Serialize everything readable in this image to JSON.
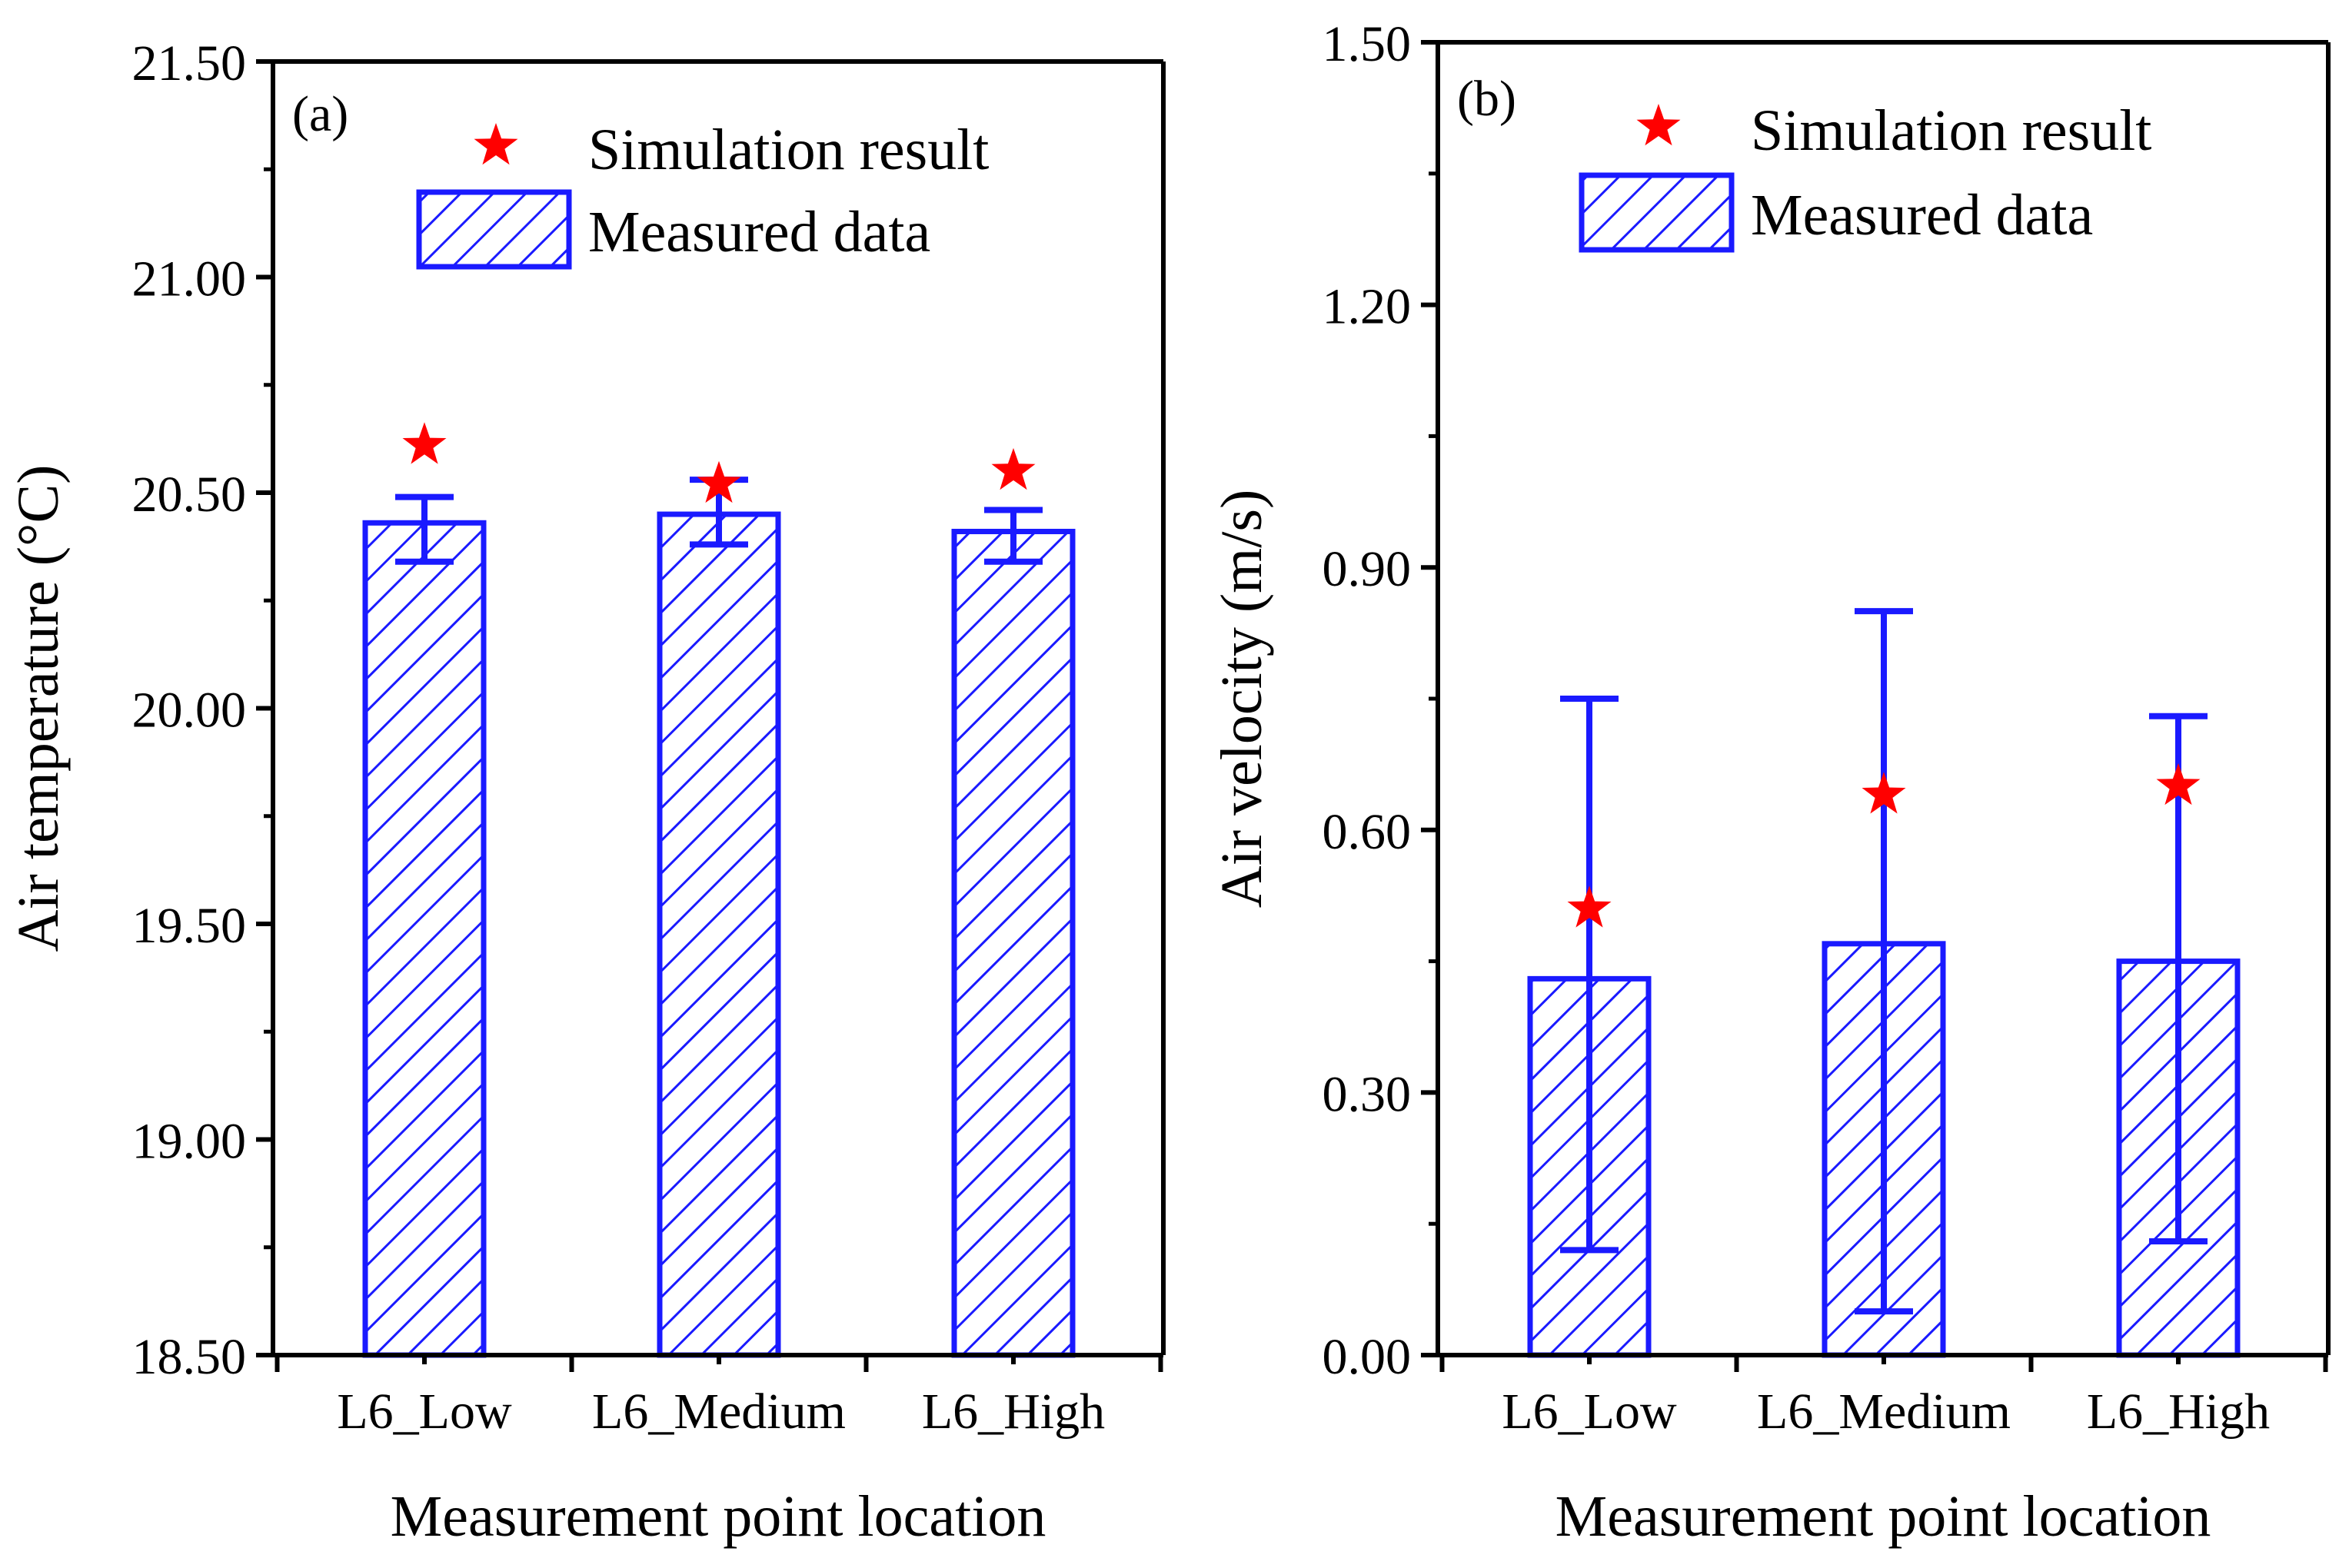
{
  "chart_data": [
    {
      "type": "bar",
      "panel_label": "(a)",
      "categories": [
        "L6_Low",
        "L6_Medium",
        "L6_High"
      ],
      "series": [
        {
          "name": "Measured data",
          "values": [
            20.43,
            20.45,
            20.41
          ],
          "error_low": [
            20.34,
            20.38,
            20.34
          ],
          "error_high": [
            20.49,
            20.53,
            20.46
          ]
        },
        {
          "name": "Simulation result",
          "values": [
            20.61,
            20.52,
            20.55
          ]
        }
      ],
      "xlabel": "Measurement point location",
      "ylabel": "Air temperature (°C)",
      "ylim": [
        18.5,
        21.5
      ],
      "yticks": [
        "18.50",
        "19.00",
        "19.50",
        "20.00",
        "20.50",
        "21.00",
        "21.50"
      ],
      "legend": [
        "Simulation result",
        "Measured data"
      ],
      "legend_position": "top-right"
    },
    {
      "type": "bar",
      "panel_label": "(b)",
      "categories": [
        "L6_Low",
        "L6_Medium",
        "L6_High"
      ],
      "series": [
        {
          "name": "Measured data",
          "values": [
            0.43,
            0.47,
            0.45
          ],
          "error_low": [
            0.12,
            0.05,
            0.13
          ],
          "error_high": [
            0.75,
            0.85,
            0.73
          ]
        },
        {
          "name": "Simulation result",
          "values": [
            0.51,
            0.64,
            0.65
          ]
        }
      ],
      "xlabel": "Measurement point location",
      "ylabel": "Air velocity (m/s)",
      "ylim": [
        0,
        1.5
      ],
      "yticks": [
        "0.00",
        "0.30",
        "0.60",
        "0.90",
        "1.20",
        "1.50"
      ],
      "legend": [
        "Simulation result",
        "Measured data"
      ],
      "legend_position": "top-right"
    }
  ],
  "colors": {
    "bar": "#1a1aff",
    "star": "#ff0000",
    "axis": "#000000"
  }
}
